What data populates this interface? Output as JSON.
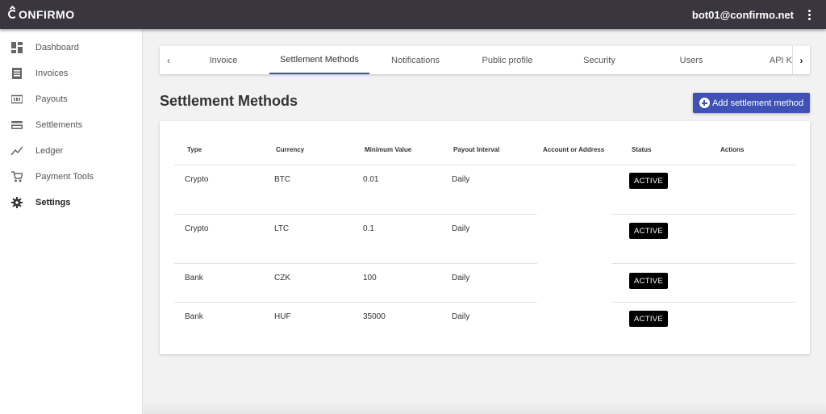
{
  "header": {
    "logo_text": "ONFIRMO",
    "user_email": "bot01@confirmo.net"
  },
  "sidebar": {
    "items": [
      {
        "label": "Dashboard",
        "icon": "dashboard-icon"
      },
      {
        "label": "Invoices",
        "icon": "invoices-icon"
      },
      {
        "label": "Payouts",
        "icon": "payouts-icon"
      },
      {
        "label": "Settlements",
        "icon": "credit-card-icon"
      },
      {
        "label": "Ledger",
        "icon": "trend-line-icon"
      },
      {
        "label": "Payment Tools",
        "icon": "cart-icon"
      },
      {
        "label": "Settings",
        "icon": "gear-icon",
        "active": true
      }
    ]
  },
  "tabs": {
    "items": [
      "Invoice",
      "Settlement Methods",
      "Notifications",
      "Public profile",
      "Security",
      "Users",
      "API Ke"
    ],
    "active": "Settlement Methods"
  },
  "main": {
    "title": "Settlement Methods",
    "add_button_label": "Add settlement method"
  },
  "table": {
    "columns": [
      "Type",
      "Currency",
      "Minimum Value",
      "Payout Interval",
      "Account or Address",
      "Status",
      "Actions"
    ],
    "rows": [
      {
        "type": "Crypto",
        "currency": "BTC",
        "min": "0.01",
        "interval": "Daily",
        "status": "ACTIVE"
      },
      {
        "type": "Crypto",
        "currency": "LTC",
        "min": "0.1",
        "interval": "Daily",
        "status": "ACTIVE"
      },
      {
        "type": "Bank",
        "currency": "CZK",
        "min": "100",
        "interval": "Daily",
        "status": "ACTIVE"
      },
      {
        "type": "Bank",
        "currency": "HUF",
        "min": "35000",
        "interval": "Daily",
        "status": "ACTIVE"
      }
    ]
  },
  "colors": {
    "topbar": "#3a3640",
    "accent": "#3f51b5",
    "badge": "#000000"
  }
}
